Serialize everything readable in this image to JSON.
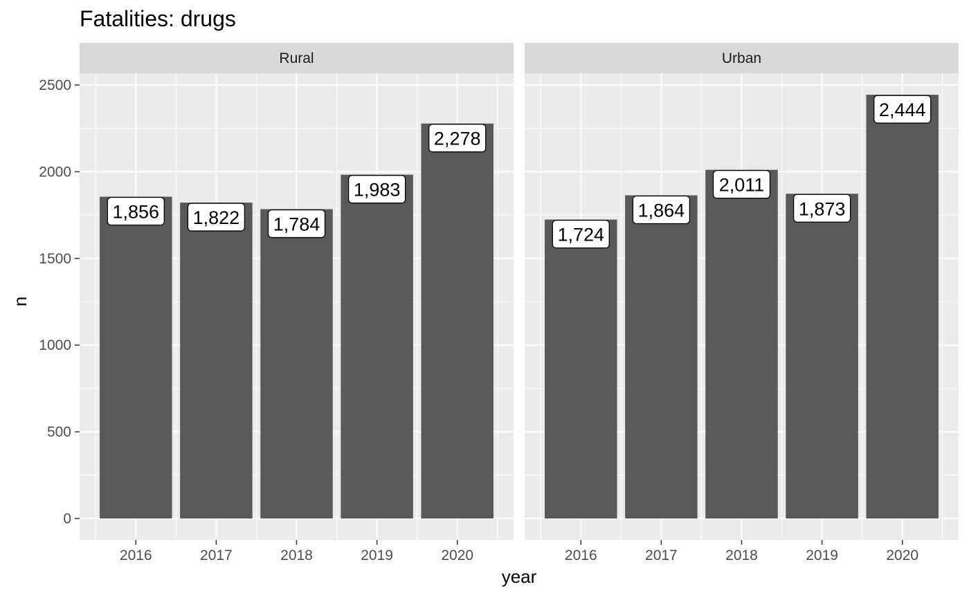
{
  "chart_data": {
    "type": "bar",
    "title": "Fatalities: drugs",
    "xlabel": "year",
    "ylabel": "n",
    "ylim": [
      0,
      2700
    ],
    "yticks": [
      0,
      500,
      1000,
      1500,
      2000,
      2500
    ],
    "categories": [
      "2016",
      "2017",
      "2018",
      "2019",
      "2020"
    ],
    "grid": true,
    "panels": [
      {
        "name": "Rural",
        "values": [
          1856,
          1822,
          1784,
          1983,
          2278
        ],
        "labels": [
          "1,856",
          "1,822",
          "1,784",
          "1,983",
          "2,278"
        ]
      },
      {
        "name": "Urban",
        "values": [
          1724,
          1864,
          2011,
          1873,
          2444
        ],
        "labels": [
          "1,724",
          "1,864",
          "2,011",
          "1,873",
          "2,444"
        ]
      }
    ],
    "colors": {
      "bar": "#595959",
      "panel_background": "#ebebeb",
      "strip_background": "#d9d9d9",
      "grid": "#ffffff",
      "label_fill": "#ffffff",
      "label_border": "#000000"
    }
  }
}
